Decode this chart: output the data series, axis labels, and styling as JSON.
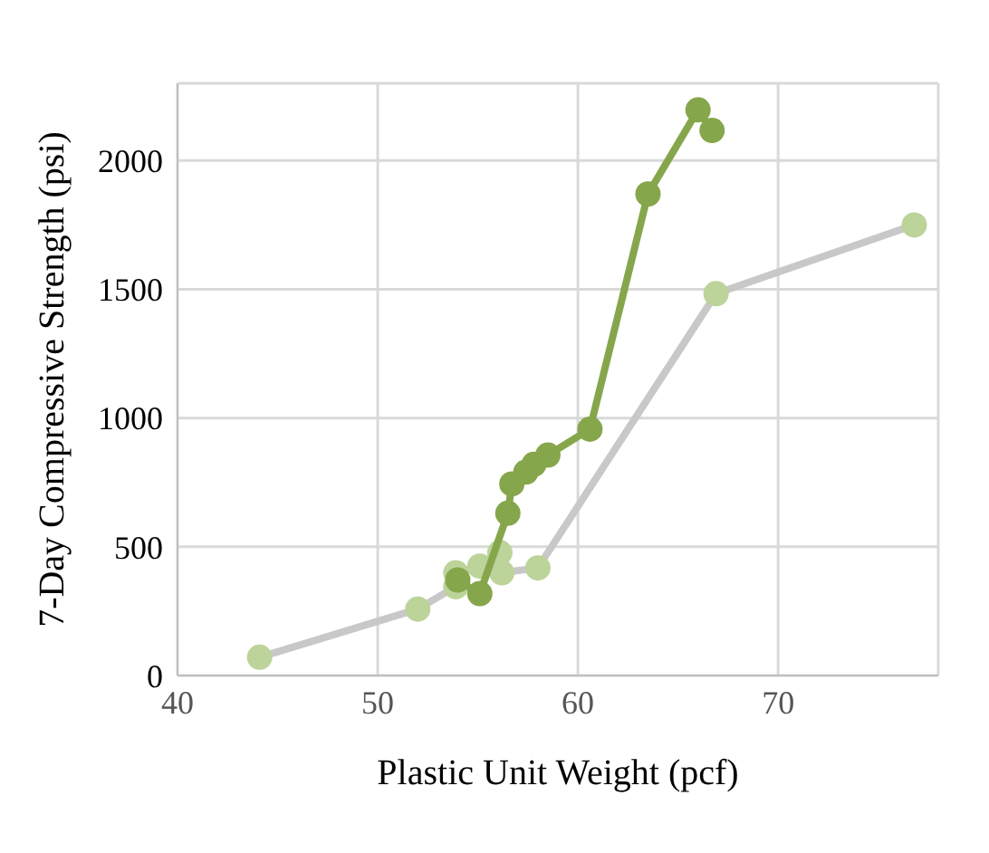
{
  "chart_data": {
    "type": "line",
    "xlabel": "Plastic Unit Weight (pcf)",
    "ylabel": "7-Day Compressive Strength (psi)",
    "xlim": [
      40,
      78
    ],
    "xticks": [
      40,
      50,
      60,
      70
    ],
    "ylim": [
      0,
      2300
    ],
    "yticks": [
      0,
      500,
      1000,
      1500,
      2000
    ],
    "grid": true,
    "legend": false,
    "marker": "circle",
    "series": [
      {
        "color": "#bcd39a",
        "x": [
          44.1,
          52.0,
          53.9,
          53.9,
          55.1,
          56.1,
          56.2,
          58.0,
          66.9,
          76.8
        ],
        "values": [
          71,
          258,
          345,
          399,
          425,
          477,
          399,
          418,
          1483,
          1750
        ]
      },
      {
        "color": "#86a64c",
        "x": [
          54.0,
          55.1,
          56.5,
          56.7,
          57.4,
          57.8,
          58.5,
          60.6,
          63.5,
          66.0,
          66.7
        ],
        "values": [
          371,
          318,
          630,
          744,
          790,
          820,
          856,
          957,
          1870,
          2197,
          2117
        ]
      }
    ]
  }
}
